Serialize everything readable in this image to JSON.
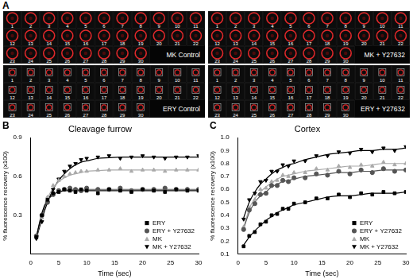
{
  "panel_a": {
    "label": "A",
    "frame_numbers": [
      1,
      2,
      3,
      4,
      5,
      6,
      7,
      8,
      9,
      10,
      11,
      12,
      13,
      14,
      15,
      16,
      17,
      18,
      19,
      20,
      21,
      22,
      23,
      24,
      25,
      26,
      27,
      28,
      29,
      30
    ],
    "panels": [
      {
        "title": "MK Control",
        "marker": "circle"
      },
      {
        "title": "MK + Y27632",
        "marker": "circle"
      },
      {
        "title": "ERY Control",
        "marker": "square"
      },
      {
        "title": "ERY + Y27632",
        "marker": "square"
      }
    ]
  },
  "chart_data": [
    {
      "type": "scatter",
      "title": "Cleavage furrow",
      "annotations": [
        "B"
      ],
      "x_label": "Time (sec)",
      "y_label": "% fluorescence recovery (x100)",
      "xlim": [
        0,
        30
      ],
      "xticks": [
        0,
        5,
        10,
        15,
        20,
        25,
        30
      ],
      "ylim": [
        0,
        0.9
      ],
      "yticks": [
        0.3,
        0.6,
        0.9
      ],
      "grid": false,
      "legend": "lower right",
      "x": [
        1,
        2,
        3,
        4,
        5,
        6,
        7,
        8,
        9,
        10,
        12,
        14,
        16,
        18,
        20,
        22,
        24,
        26,
        28,
        30
      ],
      "series": [
        {
          "name": "ERY",
          "color": "#000000",
          "marker": "square",
          "values": [
            0.13,
            0.3,
            0.42,
            0.47,
            0.48,
            0.5,
            0.49,
            0.48,
            0.5,
            0.49,
            0.47,
            0.5,
            0.49,
            0.48,
            0.5,
            0.49,
            0.48,
            0.5,
            0.49,
            0.49
          ],
          "fit": [
            0.13,
            0.32,
            0.42,
            0.46,
            0.48,
            0.49,
            0.49,
            0.49,
            0.49,
            0.49,
            0.49,
            0.49,
            0.49,
            0.49,
            0.49,
            0.49,
            0.49,
            0.49,
            0.49,
            0.49
          ]
        },
        {
          "name": "ERY + Y27632",
          "color": "#555555",
          "marker": "circle",
          "values": [
            0.14,
            0.3,
            0.4,
            0.46,
            0.49,
            0.5,
            0.51,
            0.5,
            0.49,
            0.51,
            0.5,
            0.5,
            0.51,
            0.49,
            0.5,
            0.5,
            0.51,
            0.5,
            0.5,
            0.5
          ],
          "fit": [
            0.14,
            0.3,
            0.41,
            0.46,
            0.48,
            0.49,
            0.5,
            0.5,
            0.5,
            0.5,
            0.5,
            0.5,
            0.5,
            0.5,
            0.5,
            0.5,
            0.5,
            0.5,
            0.5,
            0.5
          ]
        },
        {
          "name": "MK",
          "color": "#aaaaaa",
          "marker": "triangle",
          "values": [
            0.13,
            0.28,
            0.44,
            0.53,
            0.57,
            0.6,
            0.62,
            0.63,
            0.64,
            0.64,
            0.65,
            0.65,
            0.66,
            0.64,
            0.65,
            0.65,
            0.64,
            0.65,
            0.65,
            0.65
          ],
          "fit": [
            0.13,
            0.3,
            0.43,
            0.51,
            0.56,
            0.59,
            0.61,
            0.62,
            0.63,
            0.64,
            0.645,
            0.65,
            0.65,
            0.65,
            0.65,
            0.65,
            0.65,
            0.65,
            0.65,
            0.65
          ]
        },
        {
          "name": "MK + Y27632",
          "color": "#000000",
          "marker": "triangle-down",
          "values": [
            0.12,
            0.25,
            0.4,
            0.5,
            0.58,
            0.64,
            0.68,
            0.7,
            0.73,
            0.74,
            0.75,
            0.76,
            0.74,
            0.75,
            0.76,
            0.75,
            0.74,
            0.75,
            0.75,
            0.76
          ],
          "fit": [
            0.12,
            0.27,
            0.4,
            0.5,
            0.57,
            0.62,
            0.66,
            0.69,
            0.71,
            0.72,
            0.74,
            0.745,
            0.75,
            0.75,
            0.75,
            0.75,
            0.75,
            0.75,
            0.75,
            0.75
          ]
        }
      ]
    },
    {
      "type": "scatter",
      "title": "Cortex",
      "annotations": [
        "C"
      ],
      "x_label": "Time (sec)",
      "y_label": "% fluorescence recovery (x100)",
      "xlim": [
        0,
        30
      ],
      "xticks": [
        0,
        5,
        10,
        15,
        20,
        25,
        30
      ],
      "ylim": [
        0.1,
        1.0
      ],
      "yticks": [
        0.1,
        0.2,
        0.3,
        0.4,
        0.5,
        0.6,
        0.7,
        0.8,
        0.9,
        {
          "value": 1,
          "label": "1.0"
        }
      ],
      "grid": false,
      "legend": "lower right",
      "x": [
        1,
        2,
        3,
        4,
        5,
        6,
        7,
        8,
        9,
        10,
        12,
        14,
        16,
        18,
        20,
        22,
        24,
        26,
        28,
        30
      ],
      "series": [
        {
          "name": "ERY",
          "color": "#000000",
          "marker": "square",
          "values": [
            0.16,
            0.24,
            0.27,
            0.33,
            0.35,
            0.4,
            0.41,
            0.45,
            0.45,
            0.49,
            0.5,
            0.53,
            0.53,
            0.56,
            0.54,
            0.57,
            0.56,
            0.58,
            0.57,
            0.58
          ],
          "fit": [
            0.17,
            0.23,
            0.28,
            0.32,
            0.36,
            0.39,
            0.42,
            0.44,
            0.46,
            0.48,
            0.5,
            0.52,
            0.54,
            0.55,
            0.55,
            0.56,
            0.57,
            0.57,
            0.57,
            0.58
          ]
        },
        {
          "name": "ERY + Y27632",
          "color": "#555555",
          "marker": "circle",
          "values": [
            0.29,
            0.44,
            0.49,
            0.56,
            0.57,
            0.63,
            0.63,
            0.67,
            0.66,
            0.69,
            0.69,
            0.72,
            0.71,
            0.74,
            0.72,
            0.75,
            0.73,
            0.76,
            0.74,
            0.75
          ],
          "fit": [
            0.3,
            0.42,
            0.5,
            0.55,
            0.58,
            0.62,
            0.64,
            0.66,
            0.67,
            0.68,
            0.7,
            0.71,
            0.72,
            0.73,
            0.73,
            0.74,
            0.74,
            0.75,
            0.75,
            0.75
          ]
        },
        {
          "name": "MK",
          "color": "#aaaaaa",
          "marker": "triangle",
          "values": [
            0.31,
            0.46,
            0.52,
            0.6,
            0.61,
            0.66,
            0.67,
            0.71,
            0.7,
            0.73,
            0.73,
            0.76,
            0.75,
            0.78,
            0.77,
            0.79,
            0.78,
            0.81,
            0.79,
            0.8
          ],
          "fit": [
            0.3,
            0.45,
            0.53,
            0.58,
            0.62,
            0.65,
            0.68,
            0.7,
            0.71,
            0.72,
            0.74,
            0.75,
            0.76,
            0.77,
            0.78,
            0.78,
            0.79,
            0.8,
            0.8,
            0.8
          ]
        },
        {
          "name": "MK + Y27632",
          "color": "#000000",
          "marker": "triangle-down",
          "values": [
            0.37,
            0.52,
            0.57,
            0.66,
            0.67,
            0.74,
            0.74,
            0.79,
            0.78,
            0.82,
            0.82,
            0.86,
            0.86,
            0.89,
            0.88,
            0.91,
            0.89,
            0.92,
            0.9,
            0.93
          ],
          "fit": [
            0.38,
            0.5,
            0.58,
            0.64,
            0.68,
            0.72,
            0.75,
            0.77,
            0.79,
            0.8,
            0.83,
            0.85,
            0.87,
            0.88,
            0.89,
            0.9,
            0.9,
            0.91,
            0.91,
            0.92
          ]
        }
      ]
    }
  ]
}
